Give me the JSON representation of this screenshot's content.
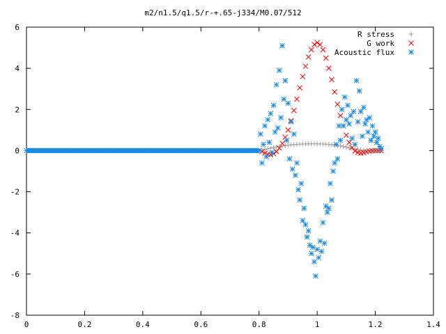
{
  "chart_data": {
    "type": "scatter",
    "title": "m2/n1.5/q1.5/r-+.65-j334/M0.07/512",
    "xlabel": "",
    "ylabel": "",
    "xlim": [
      0,
      1.4
    ],
    "ylim": [
      -8,
      6
    ],
    "x_ticks": [
      0,
      0.2,
      0.4,
      0.6,
      0.8,
      1,
      1.2,
      1.4
    ],
    "x_tick_labels": [
      "0",
      "0.2",
      "0.4",
      "0.6",
      "0.8",
      "1",
      "1.2",
      "1.4"
    ],
    "y_ticks": [
      -8,
      -6,
      -4,
      -2,
      0,
      2,
      4,
      6
    ],
    "y_tick_labels": [
      "-8",
      "-6",
      "-4",
      "-2",
      "0",
      "2",
      "4",
      "6"
    ],
    "grid": false,
    "legend_position": "top-right",
    "series": [
      {
        "name": "R stress",
        "marker": "+",
        "color": "#a0a0a0",
        "points": [
          [
            0.0,
            0.0
          ],
          [
            0.1,
            0.0
          ],
          [
            0.2,
            0.0
          ],
          [
            0.3,
            0.0
          ],
          [
            0.4,
            0.0
          ],
          [
            0.5,
            0.0
          ],
          [
            0.6,
            0.0
          ],
          [
            0.7,
            0.0
          ],
          [
            0.8,
            0.0
          ],
          [
            0.81,
            0.03
          ],
          [
            0.82,
            0.06
          ],
          [
            0.83,
            0.09
          ],
          [
            0.84,
            0.12
          ],
          [
            0.85,
            0.15
          ],
          [
            0.86,
            0.17
          ],
          [
            0.87,
            0.2
          ],
          [
            0.88,
            0.22
          ],
          [
            0.89,
            0.24
          ],
          [
            0.9,
            0.26
          ],
          [
            0.91,
            0.28
          ],
          [
            0.92,
            0.29
          ],
          [
            0.93,
            0.3
          ],
          [
            0.94,
            0.31
          ],
          [
            0.95,
            0.32
          ],
          [
            0.96,
            0.32
          ],
          [
            0.97,
            0.33
          ],
          [
            0.98,
            0.33
          ],
          [
            0.99,
            0.33
          ],
          [
            1.0,
            0.33
          ],
          [
            1.01,
            0.32
          ],
          [
            1.02,
            0.32
          ],
          [
            1.03,
            0.31
          ],
          [
            1.04,
            0.3
          ],
          [
            1.05,
            0.29
          ],
          [
            1.06,
            0.27
          ],
          [
            1.07,
            0.25
          ],
          [
            1.08,
            0.23
          ],
          [
            1.09,
            0.2
          ],
          [
            1.1,
            0.17
          ],
          [
            1.11,
            0.14
          ],
          [
            1.12,
            0.11
          ],
          [
            1.13,
            0.08
          ],
          [
            1.14,
            0.05
          ],
          [
            1.15,
            0.03
          ],
          [
            1.16,
            0.02
          ],
          [
            1.17,
            0.01
          ],
          [
            1.18,
            0.0
          ],
          [
            1.19,
            0.0
          ],
          [
            1.2,
            0.0
          ],
          [
            1.21,
            0.0
          ],
          [
            1.22,
            0.0
          ]
        ]
      },
      {
        "name": "G work",
        "marker": "x",
        "color": "#ff0000",
        "points": [
          [
            0.8,
            0.0
          ],
          [
            0.81,
            -0.05
          ],
          [
            0.82,
            -0.12
          ],
          [
            0.83,
            -0.18
          ],
          [
            0.84,
            -0.2
          ],
          [
            0.85,
            -0.15
          ],
          [
            0.86,
            -0.05
          ],
          [
            0.87,
            0.12
          ],
          [
            0.88,
            0.35
          ],
          [
            0.89,
            0.65
          ],
          [
            0.9,
            1.0
          ],
          [
            0.91,
            1.45
          ],
          [
            0.92,
            1.95
          ],
          [
            0.93,
            2.5
          ],
          [
            0.94,
            3.05
          ],
          [
            0.95,
            3.6
          ],
          [
            0.96,
            4.1
          ],
          [
            0.97,
            4.55
          ],
          [
            0.98,
            4.9
          ],
          [
            0.99,
            5.15
          ],
          [
            1.0,
            5.25
          ],
          [
            1.01,
            5.15
          ],
          [
            1.02,
            4.9
          ],
          [
            1.03,
            4.5
          ],
          [
            1.04,
            4.0
          ],
          [
            1.05,
            3.45
          ],
          [
            1.06,
            2.85
          ],
          [
            1.07,
            2.25
          ],
          [
            1.08,
            1.7
          ],
          [
            1.09,
            1.2
          ],
          [
            1.1,
            0.75
          ],
          [
            1.11,
            0.4
          ],
          [
            1.12,
            0.15
          ],
          [
            1.13,
            -0.02
          ],
          [
            1.14,
            -0.1
          ],
          [
            1.15,
            -0.12
          ],
          [
            1.16,
            -0.1
          ],
          [
            1.17,
            -0.06
          ],
          [
            1.18,
            -0.03
          ],
          [
            1.19,
            -0.01
          ],
          [
            1.2,
            0.0
          ],
          [
            1.21,
            0.0
          ],
          [
            1.22,
            0.0
          ]
        ]
      },
      {
        "name": "Acoustic flux",
        "marker": "*",
        "color": "#1a8ae6",
        "points": [
          [
            0.0,
            0.0
          ],
          [
            0.05,
            0.0
          ],
          [
            0.1,
            0.0
          ],
          [
            0.15,
            0.0
          ],
          [
            0.2,
            0.0
          ],
          [
            0.25,
            0.0
          ],
          [
            0.3,
            0.0
          ],
          [
            0.35,
            0.0
          ],
          [
            0.4,
            0.0
          ],
          [
            0.45,
            0.0
          ],
          [
            0.5,
            0.0
          ],
          [
            0.55,
            0.0
          ],
          [
            0.6,
            0.0
          ],
          [
            0.65,
            0.0
          ],
          [
            0.7,
            0.0
          ],
          [
            0.75,
            0.0
          ],
          [
            0.8,
            0.0
          ],
          [
            0.805,
            0.8
          ],
          [
            0.81,
            -0.6
          ],
          [
            0.815,
            0.3
          ],
          [
            0.82,
            1.2
          ],
          [
            0.825,
            -0.3
          ],
          [
            0.83,
            1.5
          ],
          [
            0.835,
            0.4
          ],
          [
            0.84,
            1.8
          ],
          [
            0.845,
            -0.1
          ],
          [
            0.85,
            2.2
          ],
          [
            0.855,
            0.9
          ],
          [
            0.86,
            3.2
          ],
          [
            0.865,
            1.1
          ],
          [
            0.87,
            3.9
          ],
          [
            0.875,
            1.6
          ],
          [
            0.88,
            5.1
          ],
          [
            0.885,
            2.5
          ],
          [
            0.89,
            3.4
          ],
          [
            0.895,
            0.5
          ],
          [
            0.9,
            2.3
          ],
          [
            0.905,
            -0.4
          ],
          [
            0.91,
            1.4
          ],
          [
            0.915,
            -0.9
          ],
          [
            0.92,
            0.8
          ],
          [
            0.925,
            -1.2
          ],
          [
            0.93,
            -0.6
          ],
          [
            0.935,
            -1.9
          ],
          [
            0.94,
            -2.4
          ],
          [
            0.945,
            -1.6
          ],
          [
            0.95,
            -3.4
          ],
          [
            0.955,
            -2.8
          ],
          [
            0.96,
            -3.6
          ],
          [
            0.965,
            -4.2
          ],
          [
            0.97,
            -3.9
          ],
          [
            0.975,
            -4.6
          ],
          [
            0.98,
            -5.0
          ],
          [
            0.985,
            -4.7
          ],
          [
            0.99,
            -5.4
          ],
          [
            0.995,
            -6.1
          ],
          [
            1.0,
            -4.8
          ],
          [
            1.005,
            -5.2
          ],
          [
            1.01,
            -4.4
          ],
          [
            1.015,
            -4.9
          ],
          [
            1.02,
            -3.5
          ],
          [
            1.025,
            -4.5
          ],
          [
            1.03,
            -2.7
          ],
          [
            1.035,
            -3.0
          ],
          [
            1.04,
            -2.8
          ],
          [
            1.045,
            -1.6
          ],
          [
            1.05,
            -2.4
          ],
          [
            1.055,
            -1.0
          ],
          [
            1.06,
            -0.6
          ],
          [
            1.065,
            0.3
          ],
          [
            1.07,
            -0.4
          ],
          [
            1.075,
            1.2
          ],
          [
            1.08,
            0.5
          ],
          [
            1.085,
            2.0
          ],
          [
            1.09,
            1.2
          ],
          [
            1.095,
            2.6
          ],
          [
            1.1,
            1.5
          ],
          [
            1.105,
            2.2
          ],
          [
            1.11,
            1.3
          ],
          [
            1.115,
            1.7
          ],
          [
            1.12,
            0.6
          ],
          [
            1.125,
            1.9
          ],
          [
            1.13,
            0.3
          ],
          [
            1.135,
            3.4
          ],
          [
            1.14,
            1.4
          ],
          [
            1.145,
            2.9
          ],
          [
            1.15,
            1.9
          ],
          [
            1.155,
            0.7
          ],
          [
            1.16,
            2.1
          ],
          [
            1.165,
            1.3
          ],
          [
            1.17,
            1.5
          ],
          [
            1.175,
            0.9
          ],
          [
            1.18,
            1.6
          ],
          [
            1.185,
            0.5
          ],
          [
            1.19,
            1.2
          ],
          [
            1.195,
            0.7
          ],
          [
            1.2,
            0.9
          ],
          [
            1.205,
            0.4
          ],
          [
            1.21,
            0.6
          ],
          [
            1.215,
            0.2
          ],
          [
            1.22,
            0.1
          ]
        ]
      }
    ]
  }
}
